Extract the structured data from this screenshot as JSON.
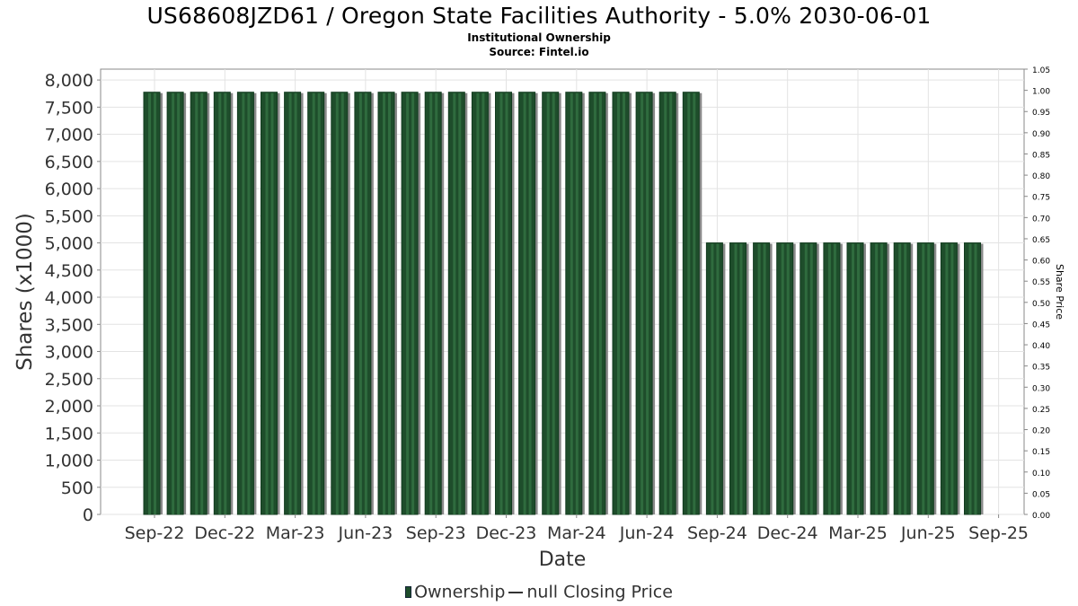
{
  "title": "US68608JZD61 / Oregon State Facilities Authority - 5.0% 2030-06-01",
  "subtitle": "Institutional Ownership",
  "source": "Source: Fintel.io",
  "colors": {
    "bar_fill": "#1e4d2b",
    "bar_stripe": "#2f6b3e",
    "bar_shadow": "#8a8a8a",
    "grid": "#e3e3e3",
    "axis": "#888888"
  },
  "legend": {
    "ownership_label": "Ownership",
    "price_label": "null Closing Price"
  },
  "chart_data": {
    "type": "bar",
    "xlabel": "Date",
    "ylabel": "Shares (x1000)",
    "y2label": "Share Price",
    "ylim": [
      0,
      8200
    ],
    "y2lim": [
      0,
      1.05
    ],
    "grid": true,
    "legend_position": "bottom",
    "y_ticks": [
      "0",
      "500",
      "1,000",
      "1,500",
      "2,000",
      "2,500",
      "3,000",
      "3,500",
      "4,000",
      "4,500",
      "5,000",
      "5,500",
      "6,000",
      "6,500",
      "7,000",
      "7,500",
      "8,000"
    ],
    "y2_ticks": [
      "0.00",
      "0.05",
      "0.10",
      "0.15",
      "0.20",
      "0.25",
      "0.30",
      "0.35",
      "0.40",
      "0.45",
      "0.50",
      "0.55",
      "0.60",
      "0.65",
      "0.70",
      "0.75",
      "0.80",
      "0.85",
      "0.90",
      "0.95",
      "1.00",
      "1.05"
    ],
    "x_ticks": [
      "Sep-22",
      "Dec-22",
      "Mar-23",
      "Jun-23",
      "Sep-23",
      "Dec-23",
      "Mar-24",
      "Jun-24",
      "Sep-24",
      "Dec-24",
      "Mar-25",
      "Jun-25",
      "Sep-25"
    ],
    "series": [
      {
        "name": "Ownership",
        "values": [
          7775,
          7775,
          7775,
          7775,
          7775,
          7775,
          7775,
          7775,
          7775,
          7775,
          7775,
          7775,
          7775,
          7775,
          7775,
          7775,
          7775,
          7775,
          7775,
          7775,
          7775,
          7775,
          7775,
          7775,
          5000,
          5000,
          5000,
          5000,
          5000,
          5000,
          5000,
          5000,
          5000,
          5000,
          5000,
          5000
        ]
      }
    ]
  }
}
